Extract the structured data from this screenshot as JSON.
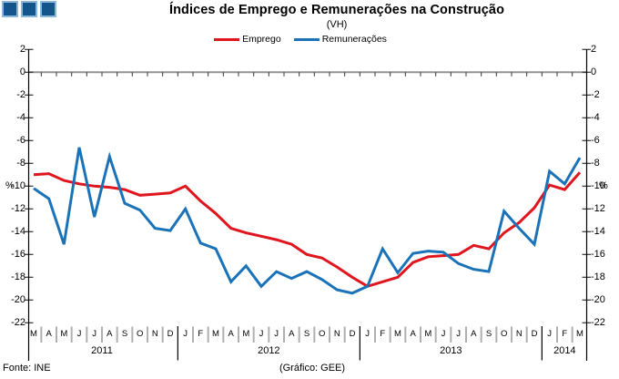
{
  "title": "Índices de Emprego e Remunerações na Construção",
  "subtitle": "(VH)",
  "footer": {
    "source": "Fonte: INE",
    "credit": "(Gráfico: GEE)"
  },
  "logo": {
    "square_fill": "#14568c",
    "square_border": "#8ab8da"
  },
  "colors": {
    "emprego": "#e0161f",
    "remuneracoes": "#1a72b8",
    "axis": "#000000",
    "zero_line": "#949494",
    "tick": "#333333",
    "month_separator": "#b0b0b0",
    "year_separator": "#000000"
  },
  "chart_data": {
    "type": "line",
    "title": "Índices de Emprego e Remunerações na Construção",
    "subtitle": "(VH)",
    "ylabel": "%",
    "ylim": [
      -22,
      2
    ],
    "ytick_step": 2,
    "grid": false,
    "legend_position": "top",
    "x_months": [
      "M",
      "A",
      "M",
      "J",
      "J",
      "A",
      "S",
      "O",
      "N",
      "D",
      "J",
      "F",
      "M",
      "A",
      "M",
      "J",
      "J",
      "A",
      "S",
      "O",
      "N",
      "D",
      "J",
      "F",
      "M",
      "A",
      "M",
      "J",
      "J",
      "A",
      "S",
      "O",
      "N",
      "D",
      "J",
      "F",
      "M"
    ],
    "x_years": [
      {
        "label": "2011",
        "start": 0,
        "end": 9
      },
      {
        "label": "2012",
        "start": 10,
        "end": 21
      },
      {
        "label": "2013",
        "start": 22,
        "end": 33
      },
      {
        "label": "2014",
        "start": 34,
        "end": 36
      }
    ],
    "series": [
      {
        "name": "Emprego",
        "color": "#e0161f",
        "values": [
          -9.0,
          -8.9,
          -9.5,
          -9.8,
          -10.0,
          -10.1,
          -10.3,
          -10.8,
          -10.7,
          -10.6,
          -10.0,
          -11.3,
          -12.4,
          -13.7,
          -14.1,
          -14.4,
          -14.7,
          -15.1,
          -16.0,
          -16.3,
          -17.1,
          -18.0,
          -18.8,
          -18.4,
          -18.0,
          -16.7,
          -16.2,
          -16.1,
          -16.0,
          -15.2,
          -15.5,
          -14.1,
          -13.2,
          -11.9,
          -9.9,
          -10.3,
          -8.8
        ]
      },
      {
        "name": "Remunerações",
        "color": "#1a72b8",
        "values": [
          -10.2,
          -11.1,
          -15.1,
          -6.6,
          -12.7,
          -7.4,
          -11.5,
          -12.1,
          -13.7,
          -13.9,
          -12.0,
          -15.0,
          -15.5,
          -18.4,
          -17.0,
          -18.8,
          -17.5,
          -18.1,
          -17.5,
          -18.2,
          -19.1,
          -19.4,
          -18.8,
          -15.5,
          -17.6,
          -15.9,
          -15.7,
          -15.8,
          -16.8,
          -17.3,
          -17.5,
          -12.2,
          -13.7,
          -15.1,
          -8.7,
          -9.8,
          -7.5
        ]
      }
    ]
  }
}
